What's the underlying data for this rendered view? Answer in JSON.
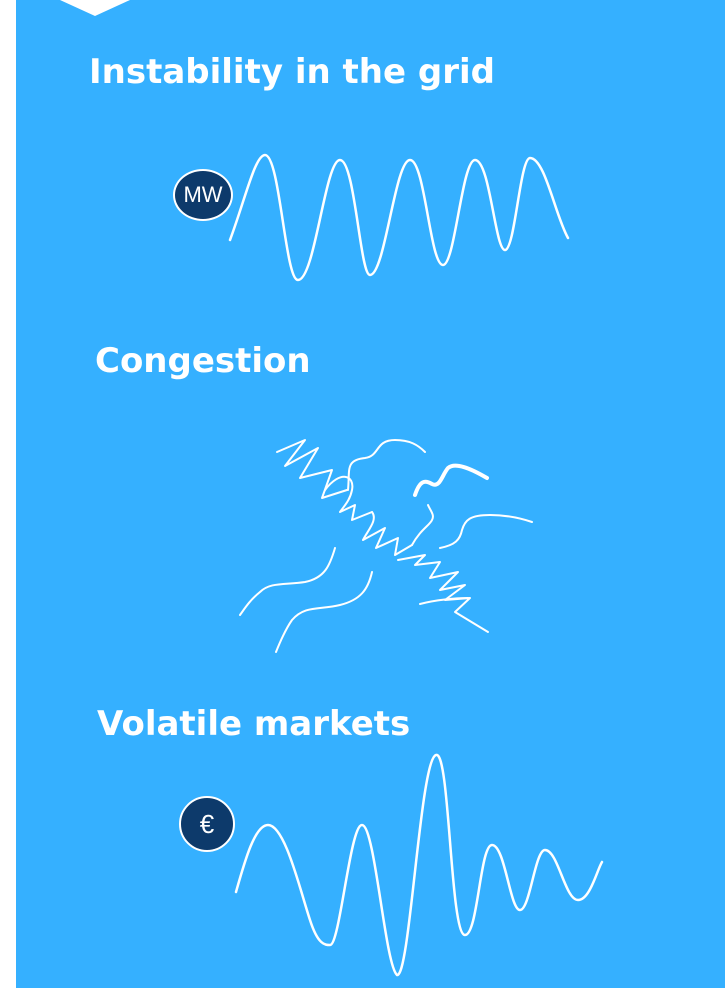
{
  "sections": [
    {
      "title": "Instability in the grid",
      "badge": "MW",
      "badge_icon": "megawatt-badge"
    },
    {
      "title": "Congestion",
      "badge_icon": "congestion-scribble"
    },
    {
      "title": "Volatile markets",
      "badge": "€",
      "badge_icon": "euro-badge"
    }
  ],
  "colors": {
    "panel": "#35b0ff",
    "badge": "#0d3a6b",
    "line": "#ffffff"
  }
}
